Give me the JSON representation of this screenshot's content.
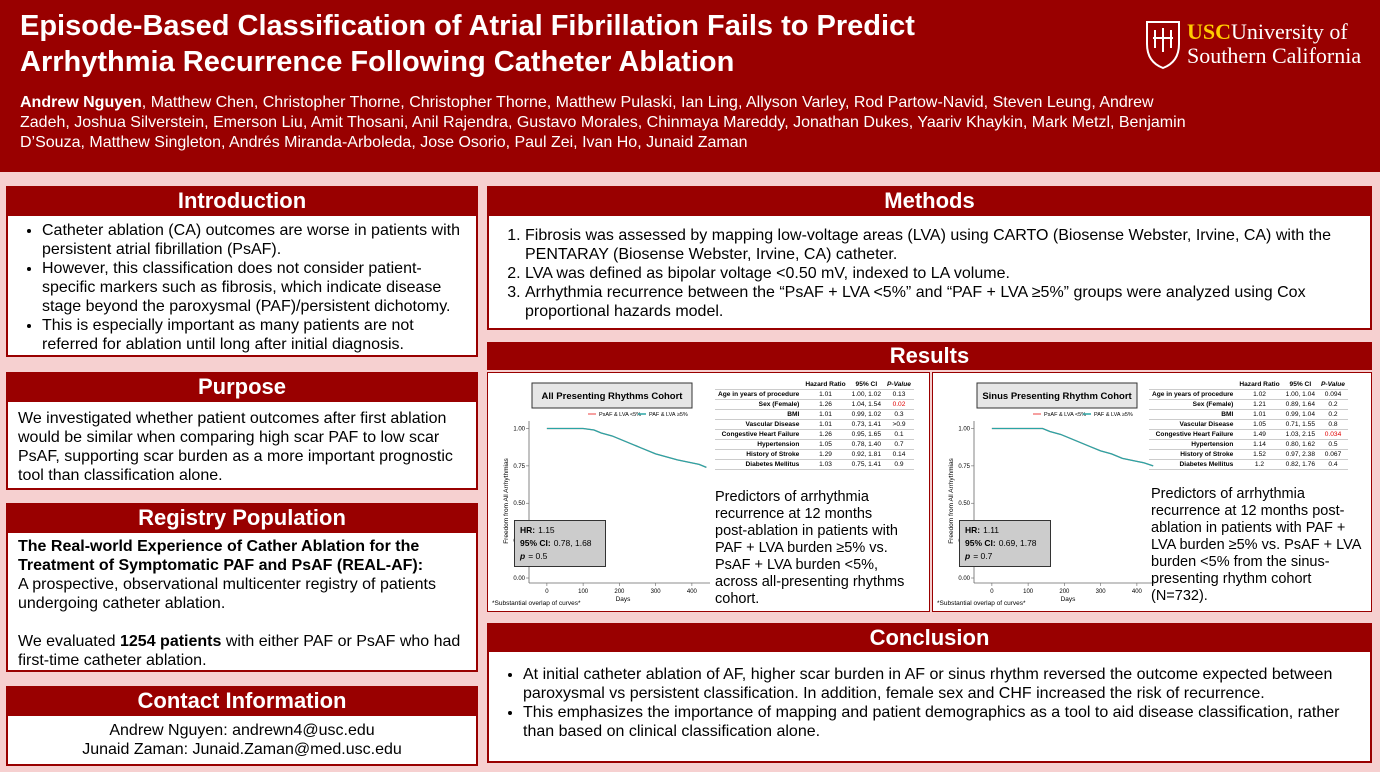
{
  "header": {
    "title": [
      "Episode-Based Classification of Atrial Fibrillation Fails to Predict",
      "Arrhythmia Recurrence Following Catheter Ablation"
    ],
    "authors_lead": "Andrew Nguyen",
    "authors_rest": ", Matthew Chen, Christopher Thorne, Christopher Thorne, Matthew Pulaski, Ian Ling, Allyson Varley, Rod Partow-Navid, Steven Leung, Andrew Zadeh, Joshua Silverstein, Emerson Liu, Amit Thosani, Anil Rajendra, Gustavo Morales, Chinmaya Mareddy, Jonathan Dukes, Yaariv Khaykin, Mark Metzl, Benjamin D’Souza, Matthew Singleton, Andrés Miranda-Arboleda, Jose Osorio, Paul Zei, Ivan Ho, Junaid Zaman",
    "logo": {
      "short": "USC",
      "line1": "University of",
      "line2": "Southern California"
    }
  },
  "introduction": {
    "heading": "Introduction",
    "bullets": [
      "Catheter ablation (CA) outcomes are worse in patients with persistent atrial fibrillation (PsAF).",
      "However, this classification does not consider patient-specific markers such as fibrosis, which indicate disease stage beyond the paroxysmal (PAF)/persistent dichotomy.",
      "This is especially important as many patients are not referred for ablation until long after initial diagnosis."
    ]
  },
  "purpose": {
    "heading": "Purpose",
    "text": "We investigated whether patient outcomes after first ablation would be similar when comparing high scar PAF to low scar PsAF, supporting scar burden as a more important prognostic tool than classification alone."
  },
  "registry": {
    "heading": "Registry Population",
    "bold": "The Real-world Experience of Cather Ablation for the Treatment of Symptomatic PAF and PsAF (REAL-AF):",
    "text": "A prospective, observational multicenter registry of patients undergoing catheter ablation.",
    "evaluated_pre": "We evaluated ",
    "evaluated_bold": "1254 patients",
    "evaluated_post": " with either PAF or PsAF who had first-time catheter ablation."
  },
  "contact": {
    "heading": "Contact Information",
    "lines": [
      "Andrew Nguyen: andrewn4@usc.edu",
      "Junaid Zaman: Junaid.Zaman@med.usc.edu"
    ]
  },
  "methods": {
    "heading": "Methods",
    "items": [
      "Fibrosis was assessed by mapping low-voltage areas (LVA) using CARTO (Biosense Webster, Irvine, CA) with the PENTARAY (Biosense Webster, Irvine, CA) catheter.",
      "LVA was defined as bipolar voltage <0.50 mV, indexed to LA volume.",
      "Arrhythmia recurrence between the “PsAF + LVA <5%” and “PAF + LVA ≥5%” groups were analyzed using Cox proportional hazards model."
    ]
  },
  "results": {
    "heading": "Results",
    "panels": [
      {
        "chart_data": {
          "type": "line",
          "title": "All Presenting Rhythms Cohort",
          "xlabel": "Days",
          "ylabel": "Freedom from All Arrhythmias",
          "xlim": [
            -30,
            450
          ],
          "ylim": [
            -0.02,
            1.05
          ],
          "xticks": [
            0,
            100,
            200,
            300,
            400
          ],
          "yticks": [
            {
              "value": 0,
              "label": "0.00"
            },
            {
              "value": 0.25,
              "label": "0.25"
            },
            {
              "value": 0.5,
              "label": "0.50"
            },
            {
              "value": 0.75,
              "label": "0.75"
            },
            {
              "value": 1,
              "label": "1.00"
            }
          ],
          "series": [
            {
              "name": "PsAF & LVA <5%",
              "color": "#f28080",
              "x": [
                0,
                50,
                100,
                130,
                150,
                180,
                200,
                230,
                260,
                300,
                330,
                360,
                400,
                420,
                440
              ],
              "values": [
                1,
                1,
                1,
                0.99,
                0.97,
                0.95,
                0.93,
                0.9,
                0.87,
                0.83,
                0.81,
                0.79,
                0.77,
                0.76,
                0.74
              ]
            },
            {
              "name": "PAF & LVA ≥5%",
              "color": "#2aa5a5",
              "x": [
                0,
                50,
                100,
                130,
                150,
                180,
                200,
                230,
                260,
                300,
                330,
                360,
                400,
                420,
                440
              ],
              "values": [
                1,
                1,
                1,
                0.99,
                0.97,
                0.95,
                0.93,
                0.9,
                0.87,
                0.83,
                0.81,
                0.79,
                0.77,
                0.76,
                0.74
              ]
            }
          ],
          "annotation": "*Substantial overlap of curves*"
        },
        "stats": {
          "hr_label": "HR:",
          "hr": "1.15",
          "ci_label": "95% CI:",
          "ci": "0.78, 1.68",
          "p_label": "p",
          "p": "= 0.5"
        },
        "table": {
          "header": [
            "Hazard Ratio",
            "95% CI",
            "P-Value"
          ],
          "rows": [
            {
              "label": "Age in years of procedure",
              "hr": "1.01",
              "ci": "1.00, 1.02",
              "p": "0.13"
            },
            {
              "label": "Sex (Female)",
              "hr": "1.26",
              "ci": "1.04, 1.54",
              "p": "0.02",
              "p_color": "#e00000"
            },
            {
              "label": "BMI",
              "hr": "1.01",
              "ci": "0.99, 1.02",
              "p": "0.3"
            },
            {
              "label": "Vascular Disease",
              "hr": "1.01",
              "ci": "0.73, 1.41",
              "p": ">0.9"
            },
            {
              "label": "Congestive Heart Failure",
              "hr": "1.26",
              "ci": "0.95, 1.65",
              "p": "0.1"
            },
            {
              "label": "Hypertension",
              "hr": "1.05",
              "ci": "0.78, 1.40",
              "p": "0.7"
            },
            {
              "label": "History of Stroke",
              "hr": "1.29",
              "ci": "0.92, 1.81",
              "p": "0.14"
            },
            {
              "label": "Diabetes Mellitus",
              "hr": "1.03",
              "ci": "0.75, 1.41",
              "p": "0.9"
            }
          ]
        },
        "caption": "Predictors of arrhythmia recurrence at 12 months post-ablation in patients with PAF + LVA burden ≥5% vs. PsAF + LVA burden <5%, across all-presenting rhythms cohort."
      },
      {
        "chart_data": {
          "type": "line",
          "title": "Sinus Presenting Rhythm Cohort",
          "xlabel": "Days",
          "ylabel": "Freedom from All Arrhythmias",
          "xlim": [
            -30,
            450
          ],
          "ylim": [
            -0.02,
            1.05
          ],
          "xticks": [
            0,
            100,
            200,
            300,
            400
          ],
          "yticks": [
            {
              "value": 0,
              "label": "0.00"
            },
            {
              "value": 0.25,
              "label": "0.25"
            },
            {
              "value": 0.5,
              "label": "0.50"
            },
            {
              "value": 0.75,
              "label": "0.75"
            },
            {
              "value": 1,
              "label": "1.00"
            }
          ],
          "series": [
            {
              "name": "PsAF & LVA <5%",
              "color": "#f28080",
              "x": [
                0,
                50,
                100,
                140,
                160,
                190,
                210,
                240,
                270,
                300,
                330,
                360,
                400,
                420,
                445
              ],
              "values": [
                1,
                1,
                1,
                1,
                0.98,
                0.96,
                0.94,
                0.91,
                0.88,
                0.85,
                0.83,
                0.8,
                0.78,
                0.77,
                0.75
              ]
            },
            {
              "name": "PAF & LVA ≥5%",
              "color": "#2aa5a5",
              "x": [
                0,
                50,
                100,
                140,
                160,
                190,
                210,
                240,
                270,
                300,
                330,
                360,
                400,
                420,
                445
              ],
              "values": [
                1,
                1,
                1,
                1,
                0.98,
                0.96,
                0.94,
                0.91,
                0.88,
                0.85,
                0.83,
                0.8,
                0.78,
                0.77,
                0.75
              ]
            }
          ],
          "annotation": "*Substantial overlap of curves*"
        },
        "stats": {
          "hr_label": "HR:",
          "hr": "1.11",
          "ci_label": "95% CI:",
          "ci": "0.69, 1.78",
          "p_label": "p",
          "p": "= 0.7"
        },
        "table": {
          "header": [
            "Hazard Ratio",
            "95% CI",
            "P-Value"
          ],
          "rows": [
            {
              "label": "Age in years of procedure",
              "hr": "1.02",
              "ci": "1.00, 1.04",
              "p": "0.094"
            },
            {
              "label": "Sex (Female)",
              "hr": "1.21",
              "ci": "0.89, 1.64",
              "p": "0.2"
            },
            {
              "label": "BMI",
              "hr": "1.01",
              "ci": "0.99, 1.04",
              "p": "0.2"
            },
            {
              "label": "Vascular Disease",
              "hr": "1.05",
              "ci": "0.71, 1.55",
              "p": "0.8"
            },
            {
              "label": "Congestive Heart Failure",
              "hr": "1.49",
              "ci": "1.03, 2.15",
              "p": "0.034",
              "p_color": "#e00000"
            },
            {
              "label": "Hypertension",
              "hr": "1.14",
              "ci": "0.80, 1.62",
              "p": "0.5"
            },
            {
              "label": "History of Stroke",
              "hr": "1.52",
              "ci": "0.97, 2.38",
              "p": "0.067"
            },
            {
              "label": "Diabetes Mellitus",
              "hr": "1.2",
              "ci": "0.82, 1.76",
              "p": "0.4"
            }
          ]
        },
        "caption": "Predictors of arrhythmia recurrence at 12 months post-ablation in patients with PAF + LVA burden ≥5% vs. PsAF + LVA burden <5% from the sinus-presenting rhythm cohort (N=732)."
      }
    ]
  },
  "conclusion": {
    "heading": "Conclusion",
    "bullets": [
      "At initial catheter ablation of AF, higher scar burden in AF or sinus rhythm reversed the outcome expected between paroxysmal vs persistent classification. In addition, female sex and CHF increased the risk of recurrence.",
      "This emphasizes the importance of mapping and patient demographics as a tool to aid disease classification, rather than based on clinical classification alone."
    ]
  }
}
